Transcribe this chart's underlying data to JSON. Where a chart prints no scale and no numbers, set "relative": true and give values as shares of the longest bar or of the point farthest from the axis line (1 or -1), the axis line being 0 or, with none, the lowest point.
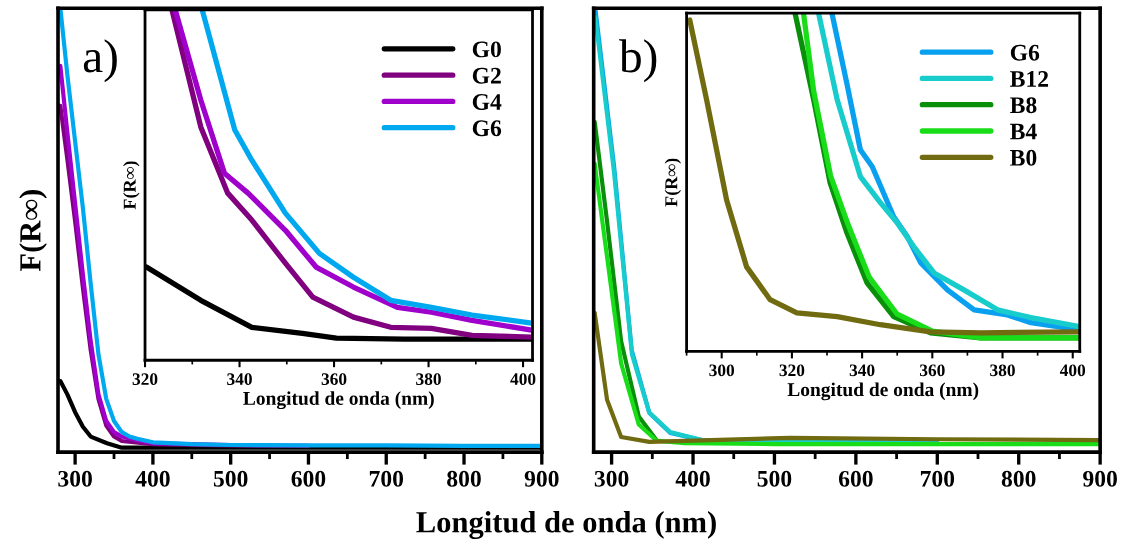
{
  "chart_data": [
    {
      "type": "line",
      "relative": true,
      "ylabel": "F(R∞)",
      "xlabel": "Longitud de onda (nm)",
      "annotations": [
        "a)"
      ],
      "xlim": [
        278,
        900
      ],
      "xticks": [
        300,
        400,
        500,
        600,
        700,
        800,
        900
      ],
      "grid": false,
      "legend": false,
      "series": [
        {
          "color": "#000000",
          "x": [
            281,
            290,
            300,
            310,
            320,
            341,
            360,
            400,
            500,
            600,
            700,
            800,
            900
          ],
          "values": [
            0.16,
            0.13,
            0.09,
            0.057,
            0.035,
            0.02,
            0.01,
            0.01,
            0.01,
            0.01,
            0.01,
            0.01,
            0.01
          ]
        },
        {
          "color": "#800080",
          "x": [
            281,
            290,
            300,
            310,
            320,
            330,
            340,
            350,
            360,
            400,
            500,
            600
          ],
          "values": [
            0.78,
            0.66,
            0.52,
            0.37,
            0.23,
            0.12,
            0.06,
            0.035,
            0.025,
            0.018,
            0.015,
            0.014
          ]
        },
        {
          "color": "#a000cc",
          "x": [
            281,
            290,
            300,
            310,
            320,
            330,
            340,
            350,
            360,
            380,
            400,
            500
          ],
          "values": [
            0.87,
            0.72,
            0.56,
            0.4,
            0.25,
            0.13,
            0.07,
            0.045,
            0.035,
            0.027,
            0.02,
            0.016
          ]
        },
        {
          "color": "#00a8f0",
          "x": [
            281,
            290,
            300,
            310,
            320,
            330,
            340,
            350,
            360,
            370,
            380,
            400,
            450,
            500,
            600,
            700,
            800,
            900
          ],
          "values": [
            1.0,
            0.85,
            0.7,
            0.55,
            0.38,
            0.22,
            0.12,
            0.07,
            0.045,
            0.035,
            0.03,
            0.022,
            0.018,
            0.016,
            0.015,
            0.015,
            0.014,
            0.014
          ]
        }
      ]
    },
    {
      "type": "line",
      "relative": true,
      "ylabel": "F(R∞)",
      "xlabel": "Longitud de onda (nm)",
      "xlim": [
        320,
        402
      ],
      "xticks": [
        320,
        340,
        360,
        380,
        400
      ],
      "grid": false,
      "legend": "top right",
      "series": [
        {
          "name": "G0",
          "color": "#000000",
          "x": [
            320.3,
            331.8,
            342.6,
            353.3,
            360.5,
            374.9,
            401.8
          ],
          "values": [
            0.266,
            0.171,
            0.094,
            0.077,
            0.063,
            0.06,
            0.06
          ]
        },
        {
          "name": "G2",
          "color": "#800080",
          "x": [
            325.7,
            331.8,
            337.5,
            342.6,
            349.7,
            355.5,
            364.1,
            372,
            380.6,
            389.2,
            401.8
          ],
          "values": [
            1.0,
            0.666,
            0.477,
            0.4,
            0.277,
            0.18,
            0.123,
            0.094,
            0.091,
            0.071,
            0.066
          ]
        },
        {
          "name": "G4",
          "color": "#a000cc",
          "x": [
            326.4,
            331.8,
            336.8,
            341.8,
            349.7,
            356.2,
            364.1,
            373.4,
            380.6,
            389.2,
            401.8
          ],
          "values": [
            1.0,
            0.743,
            0.534,
            0.477,
            0.371,
            0.266,
            0.209,
            0.151,
            0.137,
            0.114,
            0.086
          ]
        },
        {
          "name": "G6",
          "color": "#00a8f0",
          "x": [
            332.1,
            339.0,
            342.6,
            349.7,
            356.9,
            364.1,
            372,
            380.6,
            389.2,
            401.8
          ],
          "values": [
            1.0,
            0.657,
            0.571,
            0.42,
            0.305,
            0.237,
            0.171,
            0.151,
            0.129,
            0.106
          ]
        }
      ]
    },
    {
      "type": "line",
      "relative": true,
      "annotations": [
        "b)"
      ],
      "xlim": [
        278,
        900
      ],
      "xticks": [
        300,
        400,
        500,
        600,
        700,
        800,
        900
      ],
      "grid": false,
      "legend": false,
      "series": [
        {
          "color": "#0aa0f0",
          "x": [
            280,
            303,
            324.7,
            346.4,
            372,
            411,
            500
          ],
          "values": [
            1.0,
            0.645,
            0.23,
            0.088,
            0.043,
            0.027,
            0.024
          ]
        },
        {
          "color": "#18cccc",
          "x": [
            280,
            303,
            325,
            346,
            372,
            411,
            500,
            600,
            700
          ],
          "values": [
            0.98,
            0.63,
            0.22,
            0.09,
            0.045,
            0.027,
            0.024,
            0.023,
            0.022
          ]
        },
        {
          "color": "#0a8f0a",
          "x": [
            279.2,
            294.4,
            311.7,
            333.4,
            355
          ],
          "values": [
            0.744,
            0.52,
            0.25,
            0.08,
            0.027
          ]
        },
        {
          "color": "#18dd18",
          "x": [
            279.2,
            294.4,
            311.7,
            333.4,
            355,
            389.6,
            500,
            600,
            700,
            800,
            900
          ],
          "values": [
            0.65,
            0.44,
            0.2,
            0.062,
            0.026,
            0.02,
            0.018,
            0.018,
            0.018,
            0.018,
            0.018
          ]
        },
        {
          "color": "#706a10",
          "x": [
            279.2,
            294.4,
            311.7,
            346.4,
            519,
            700,
            900
          ],
          "values": [
            0.314,
            0.118,
            0.034,
            0.023,
            0.032,
            0.029,
            0.027
          ]
        }
      ]
    },
    {
      "type": "line",
      "relative": true,
      "ylabel": "F(R∞)",
      "xlabel": "Longitud de onda (nm)",
      "xlim": [
        290,
        402
      ],
      "xticks": [
        300,
        320,
        340,
        360,
        380,
        400
      ],
      "grid": false,
      "legend": "top right",
      "series": [
        {
          "name": "G6",
          "color": "#0aa0f0",
          "x": [
            331.4,
            335.7,
            339.5,
            342.9,
            349,
            352.9,
            356.7,
            364.3,
            371.9,
            381.4,
            388.1,
            402
          ],
          "values": [
            1.0,
            0.79,
            0.596,
            0.546,
            0.398,
            0.339,
            0.262,
            0.182,
            0.123,
            0.108,
            0.085,
            0.064
          ]
        },
        {
          "name": "B12",
          "color": "#18cccc",
          "x": [
            327.6,
            332.9,
            339.5,
            345.2,
            350,
            354.7,
            360.5,
            369,
            378.6,
            388.1,
            402
          ],
          "values": [
            1.0,
            0.744,
            0.517,
            0.44,
            0.38,
            0.31,
            0.232,
            0.182,
            0.123,
            0.1,
            0.073
          ]
        },
        {
          "name": "B8",
          "color": "#0a8f0a",
          "x": [
            320.9,
            326.2,
            330.9,
            335.7,
            341.4,
            349,
            359.5,
            373.8,
            402
          ],
          "values": [
            1.0,
            0.744,
            0.498,
            0.35,
            0.203,
            0.103,
            0.055,
            0.04,
            0.04
          ]
        },
        {
          "name": "B4",
          "color": "#18dd18",
          "x": [
            323.3,
            326.2,
            331,
            336,
            342,
            350,
            360,
            374,
            402
          ],
          "values": [
            1.0,
            0.77,
            0.52,
            0.375,
            0.22,
            0.11,
            0.06,
            0.04,
            0.04
          ]
        },
        {
          "name": "B0",
          "color": "#706a10",
          "x": [
            290.9,
            295.7,
            301.4,
            307.1,
            313.8,
            321.4,
            332.9,
            345.2,
            359.5,
            373.8,
            402
          ],
          "values": [
            0.98,
            0.744,
            0.448,
            0.25,
            0.153,
            0.114,
            0.103,
            0.079,
            0.058,
            0.055,
            0.058
          ]
        }
      ]
    }
  ]
}
